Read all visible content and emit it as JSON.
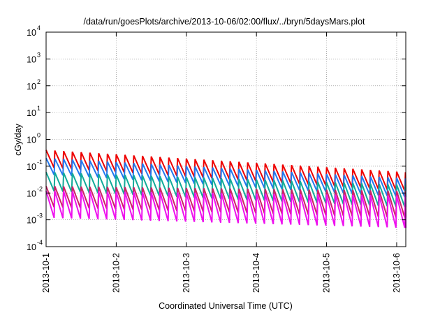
{
  "chart_data": {
    "type": "line",
    "title": "/data/run/goesPlots/archive/2013-10-06/02:00/flux/../bryn/5daysMars.plot",
    "xlabel": "Coordinated Universal Time (UTC)",
    "ylabel": "cGy/day",
    "yscale": "log",
    "ylim": [
      0.0001,
      10000
    ],
    "xlim": [
      0,
      5.13
    ],
    "y_ticks": [
      {
        "value": 0.0001,
        "base": "10",
        "exp": "-4"
      },
      {
        "value": 0.001,
        "base": "10",
        "exp": "-3"
      },
      {
        "value": 0.01,
        "base": "10",
        "exp": "-2"
      },
      {
        "value": 0.1,
        "base": "10",
        "exp": "-1"
      },
      {
        "value": 1,
        "base": "10",
        "exp": "0"
      },
      {
        "value": 10,
        "base": "10",
        "exp": "1"
      },
      {
        "value": 100,
        "base": "10",
        "exp": "2"
      },
      {
        "value": 1000,
        "base": "10",
        "exp": "3"
      },
      {
        "value": 10000,
        "base": "10",
        "exp": "4"
      }
    ],
    "x_ticks": [
      {
        "value": 0,
        "label": "2013-10-1"
      },
      {
        "value": 1,
        "label": "2013-10-2"
      },
      {
        "value": 2,
        "label": "2013-10-3"
      },
      {
        "value": 3,
        "label": "2013-10-4"
      },
      {
        "value": 4,
        "label": "2013-10-5"
      },
      {
        "value": 5,
        "label": "2013-10-6"
      }
    ],
    "grid": true,
    "sawtooth": {
      "period_days": 0.125,
      "start_day": 0.0,
      "end_day": 5.13
    },
    "series": [
      {
        "color": "#ee0000",
        "early": {
          "day": 0.0,
          "peak": 0.4,
          "trough": 0.09
        },
        "late": {
          "day": 5.13,
          "peak": 0.06,
          "trough": 0.012
        }
      },
      {
        "color": "#2277ee",
        "early": {
          "day": 0.0,
          "peak": 0.2,
          "trough": 0.05
        },
        "late": {
          "day": 5.13,
          "peak": 0.035,
          "trough": 0.007
        }
      },
      {
        "color": "#11aa99",
        "early": {
          "day": 0.0,
          "peak": 0.06,
          "trough": 0.012
        },
        "late": {
          "day": 5.13,
          "peak": 0.02,
          "trough": 0.003
        }
      },
      {
        "color": "#cc2266",
        "early": {
          "day": 0.0,
          "peak": 0.018,
          "trough": 0.003
        },
        "late": {
          "day": 5.13,
          "peak": 0.012,
          "trough": 0.0012
        }
      },
      {
        "color": "#ee11ee",
        "early": {
          "day": 0.0,
          "peak": 0.012,
          "trough": 0.0012
        },
        "late": {
          "day": 5.13,
          "peak": 0.008,
          "trough": 0.0005
        }
      }
    ]
  }
}
